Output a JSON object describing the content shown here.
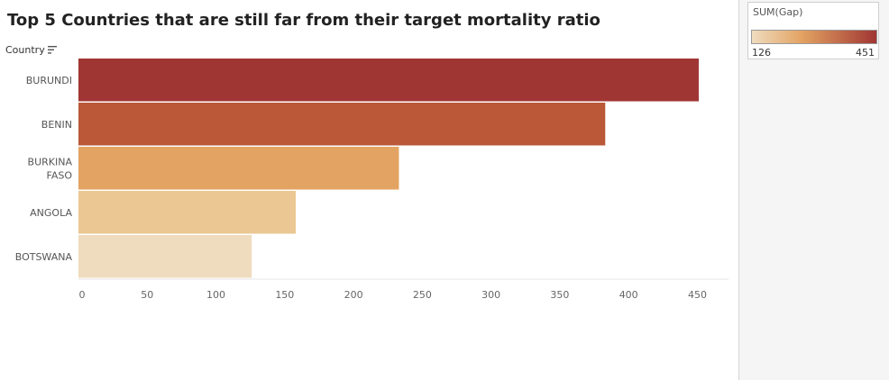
{
  "colors": {
    "ramp_low": "#efdcbf",
    "ramp_mid": "#e3a363",
    "ramp_high": "#a03633",
    "axis": "#e6e6e6",
    "tick_text": "#666666"
  },
  "header": {
    "country_field_label": "Country",
    "sort_icon": "sort-descending-icon"
  },
  "legend": {
    "title": "SUM(Gap)",
    "min_label": "126",
    "max_label": "451"
  },
  "chart_data": {
    "type": "bar",
    "orientation": "horizontal",
    "title": "Top 5 Countries that are still far from their target mortality ratio",
    "ylabel": "Country",
    "xlabel": "",
    "categories": [
      "BURUNDI",
      "BENIN",
      "BURKINA FASO",
      "ANGOLA",
      "BOTSWANA"
    ],
    "category_labels": [
      [
        "BURUNDI"
      ],
      [
        "BENIN"
      ],
      [
        "BURKINA",
        "FASO"
      ],
      [
        "ANGOLA"
      ],
      [
        "BOTSWANA"
      ]
    ],
    "series": [
      {
        "values": [
          451,
          383,
          233,
          158,
          126
        ]
      }
    ],
    "bar_colors": [
      "#a03633",
      "#ba5838",
      "#e3a363",
      "#eac793",
      "#efdcbf"
    ],
    "color_measure": "SUM(Gap)",
    "color_range": [
      126,
      451
    ],
    "xlim": [
      0,
      475
    ],
    "xticks": [
      0,
      50,
      100,
      150,
      200,
      250,
      300,
      350,
      400,
      450
    ],
    "grid": false,
    "legend_position": "top-right"
  }
}
